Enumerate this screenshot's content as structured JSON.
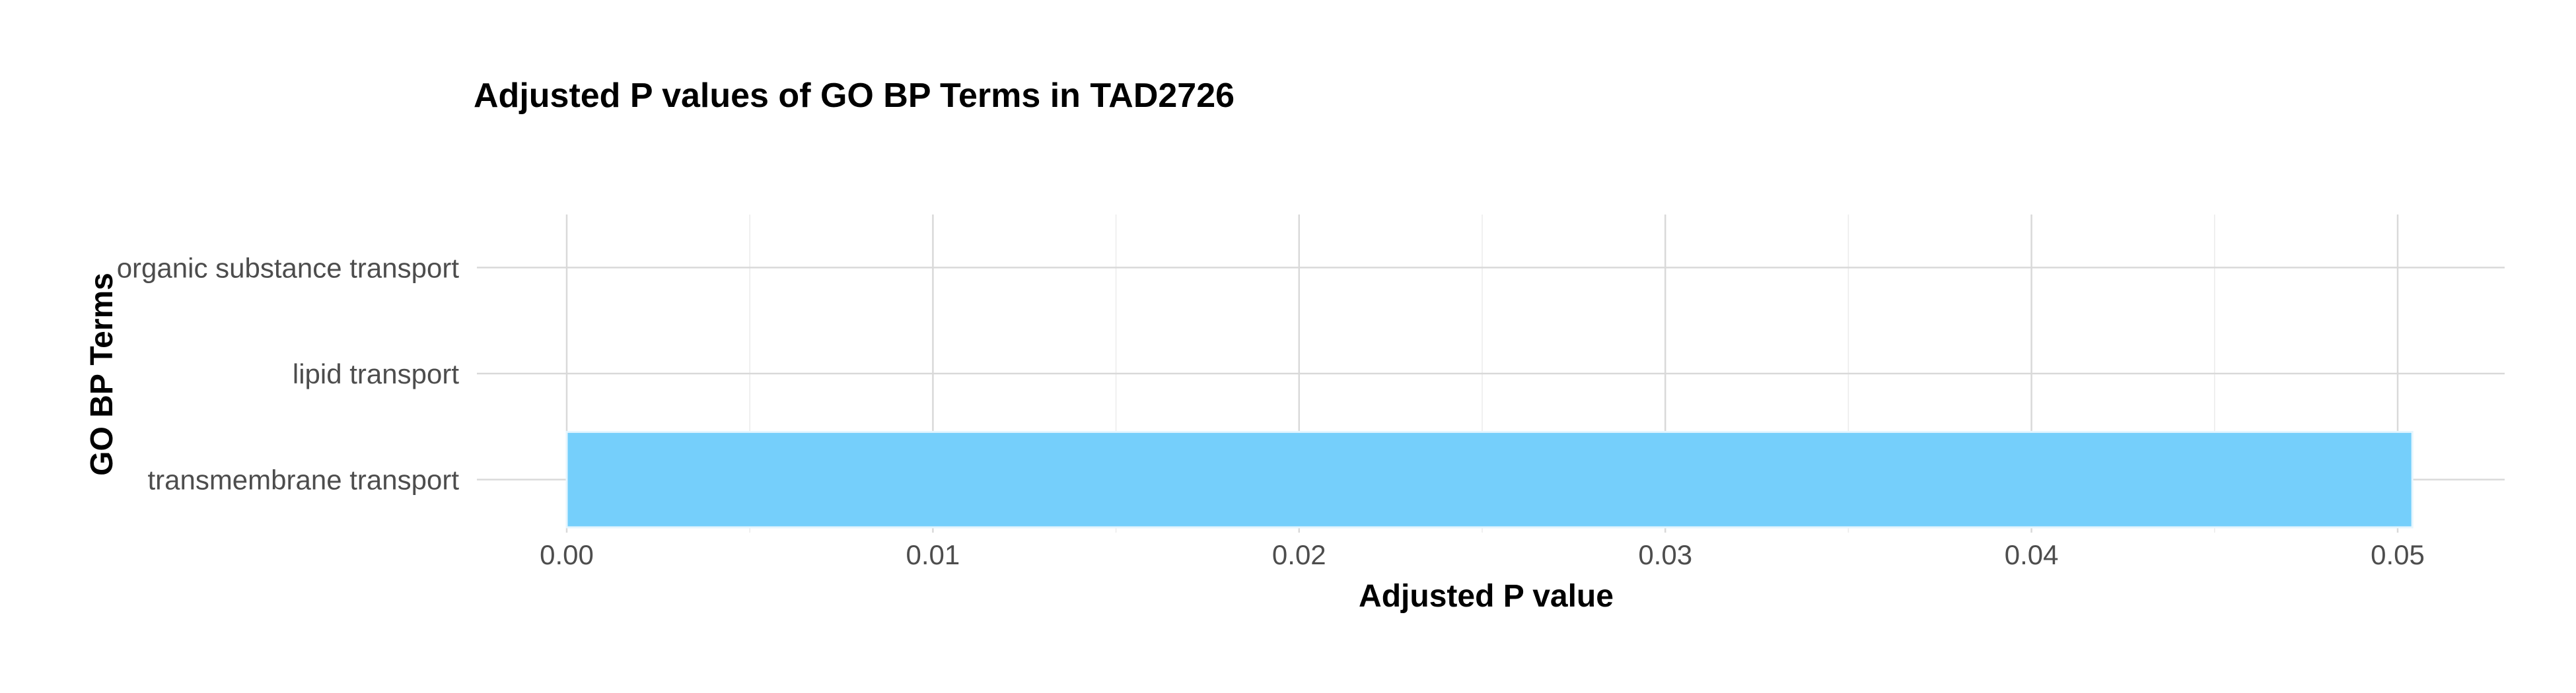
{
  "chart_data": {
    "type": "bar",
    "orientation": "horizontal",
    "title": "Adjusted P values of GO BP Terms in TAD2726",
    "xlabel": "Adjusted P value",
    "ylabel": "GO BP Terms",
    "categories": [
      "transmembrane transport",
      "lipid transport",
      "organic substance transport"
    ],
    "values": [
      0.0504,
      0.0,
      0.0
    ],
    "xlim": [
      0,
      0.053
    ],
    "xticks": [
      0.0,
      0.01,
      0.02,
      0.03,
      0.04,
      0.05
    ],
    "xtick_labels": [
      "0.00",
      "0.01",
      "0.02",
      "0.03",
      "0.04",
      "0.05"
    ],
    "grid": true,
    "legend": "none",
    "bar_color": "#75cffb",
    "bar_outline_color": "#e6f6fe"
  }
}
